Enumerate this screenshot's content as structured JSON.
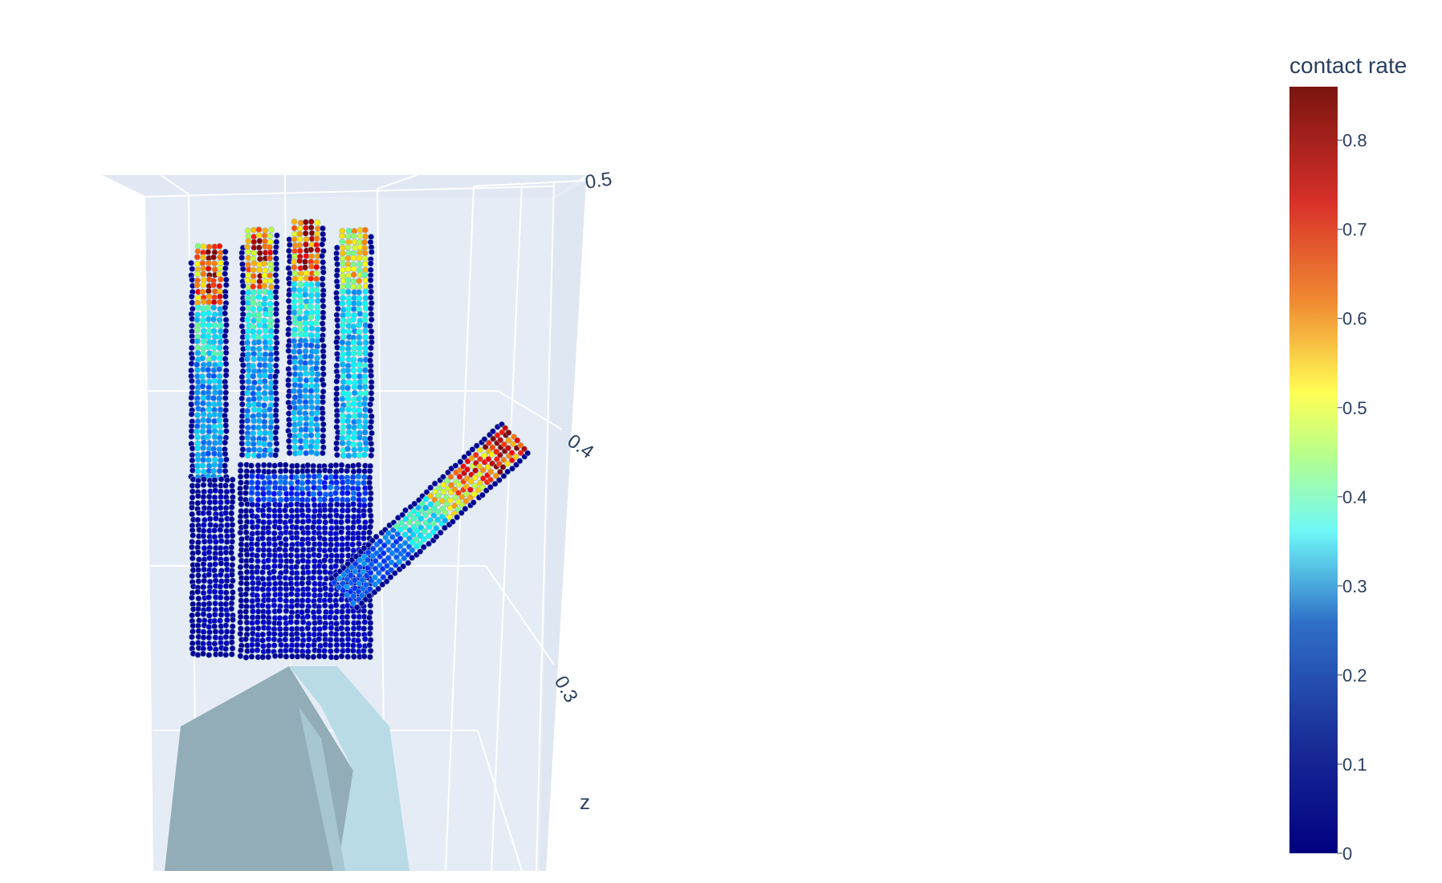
{
  "chart_data": {
    "type": "scatter3d",
    "title": "",
    "axes": {
      "z": {
        "label": "z",
        "ticks": [
          "0.5",
          "0.4",
          "0.3"
        ]
      }
    },
    "colorbar": {
      "title": "contact rate",
      "colorscale": "Jet",
      "range": [
        0,
        0.86
      ],
      "ticks": [
        "0.8",
        "0.7",
        "0.6",
        "0.5",
        "0.4",
        "0.3",
        "0.2",
        "0.1",
        "0"
      ]
    },
    "series": [
      {
        "kind": "contact_points",
        "color_by": "contact rate"
      },
      {
        "kind": "mesh_object"
      }
    ]
  },
  "colors": {
    "scene_bg": "#e5ecf6",
    "grid": "#ffffff",
    "object_light": "#b8dbe6",
    "object_dark": "#92adb8",
    "low": "#00007f",
    "high": "#7f0000"
  }
}
